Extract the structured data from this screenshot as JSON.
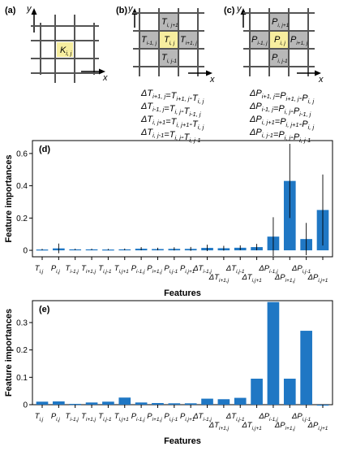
{
  "panels": {
    "a": {
      "label": "(a)",
      "y_axis": "y",
      "x_axis": "x",
      "cell": "K",
      "cell_sub": "i, j"
    },
    "b": {
      "label": "(b)",
      "y_axis": "y",
      "x_axis": "x",
      "cells": {
        "top": {
          "text": "T",
          "sub": "i, j+1"
        },
        "left": {
          "text": "T",
          "sub": "i-1, j"
        },
        "center": {
          "text": "T",
          "sub": "i, j"
        },
        "right": {
          "text": "T",
          "sub": "i+1, j"
        },
        "bottom": {
          "text": "T",
          "sub": "i, j-1"
        }
      },
      "equations": [
        "ΔT_{i+1, j}=T_{i+1, j}-T_{i, j}",
        "ΔT_{i-1, j}=T_{i, j}-T_{i-1, j}",
        "ΔT_{i, j+1}=T_{i, j+1}-T_{i, j}",
        "ΔT_{i, j-1}=T_{i, j}-T_{i, j-1}"
      ]
    },
    "c": {
      "label": "(c)",
      "y_axis": "y",
      "x_axis": "x",
      "cells": {
        "top": {
          "text": "P",
          "sub": "i, j+1"
        },
        "left": {
          "text": "P",
          "sub": "i-1, j"
        },
        "center": {
          "text": "P",
          "sub": "i, j"
        },
        "right": {
          "text": "P",
          "sub": "i+1, j"
        },
        "bottom": {
          "text": "P",
          "sub": "i, j-1"
        }
      },
      "equations": [
        "ΔP_{i+1, j}=P_{i+1, j}-P_{i, j}",
        "ΔP_{i-1, j}=P_{i, j}-P_{i-1, j}",
        "ΔP_{i, j+1}=P_{i, j+1}-P_{i, j}",
        "ΔP_{i, j-1}=P_{i, j}-P_{i, j-1}"
      ]
    }
  },
  "colors": {
    "bar": "#1f77c4",
    "highlight_cell": "#f7ee9f",
    "neighbor_cell": "#b8b8b8",
    "grid": "#555555"
  },
  "chart_data": [
    {
      "panel": "(d)",
      "type": "bar",
      "xlabel": "Features",
      "ylabel": "Feature importances",
      "ylim": [
        -0.04,
        0.68
      ],
      "yticks": [
        "0",
        "0.2",
        "0.4",
        "0.6"
      ],
      "categories": [
        {
          "base": "T",
          "sub": "i,j",
          "delta": false
        },
        {
          "base": "P",
          "sub": "i,j",
          "delta": false
        },
        {
          "base": "T",
          "sub": "i-1,j",
          "delta": false
        },
        {
          "base": "T",
          "sub": "i+1,j",
          "delta": false
        },
        {
          "base": "T",
          "sub": "i,j-1",
          "delta": false
        },
        {
          "base": "T",
          "sub": "i,j+1",
          "delta": false
        },
        {
          "base": "P",
          "sub": "i-1,j",
          "delta": false
        },
        {
          "base": "P",
          "sub": "i+1,j",
          "delta": false
        },
        {
          "base": "P",
          "sub": "i,j-1",
          "delta": false
        },
        {
          "base": "P",
          "sub": "i,j+1",
          "delta": false
        },
        {
          "base": "ΔT",
          "sub": "i-1,j",
          "delta": true
        },
        {
          "base": "ΔT",
          "sub": "i+1,j",
          "delta": true
        },
        {
          "base": "ΔT",
          "sub": "i,j-1",
          "delta": true
        },
        {
          "base": "ΔT",
          "sub": "i,j+1",
          "delta": true
        },
        {
          "base": "ΔP",
          "sub": "i-1,j",
          "delta": true
        },
        {
          "base": "ΔP",
          "sub": "i+1,j",
          "delta": true
        },
        {
          "base": "ΔP",
          "sub": "i,j-1",
          "delta": true
        },
        {
          "base": "ΔP",
          "sub": "i,j+1",
          "delta": true
        }
      ],
      "values": [
        0.005,
        0.012,
        0.006,
        0.006,
        0.005,
        0.006,
        0.01,
        0.008,
        0.009,
        0.009,
        0.015,
        0.013,
        0.016,
        0.02,
        0.085,
        0.43,
        0.07,
        0.25
      ],
      "errors": [
        0.004,
        0.03,
        0.004,
        0.004,
        0.004,
        0.005,
        0.01,
        0.008,
        0.01,
        0.012,
        0.02,
        0.015,
        0.015,
        0.02,
        0.12,
        0.23,
        0.1,
        0.22
      ]
    },
    {
      "panel": "(e)",
      "type": "bar",
      "xlabel": "Features",
      "ylabel": "Feature importances",
      "ylim": [
        0,
        0.38
      ],
      "yticks": [
        "0",
        "0.1",
        "0.2",
        "0.3"
      ],
      "categories": [
        {
          "base": "T",
          "sub": "i,j",
          "delta": false
        },
        {
          "base": "P",
          "sub": "i,j",
          "delta": false
        },
        {
          "base": "T",
          "sub": "i-1,j",
          "delta": false
        },
        {
          "base": "T",
          "sub": "i+1,j",
          "delta": false
        },
        {
          "base": "T",
          "sub": "i,j-1",
          "delta": false
        },
        {
          "base": "T",
          "sub": "i,j+1",
          "delta": false
        },
        {
          "base": "P",
          "sub": "i-1,j",
          "delta": false
        },
        {
          "base": "P",
          "sub": "i+1,j",
          "delta": false
        },
        {
          "base": "P",
          "sub": "i,j-1",
          "delta": false
        },
        {
          "base": "P",
          "sub": "i,j+1",
          "delta": false
        },
        {
          "base": "ΔT",
          "sub": "i-1,j",
          "delta": true
        },
        {
          "base": "ΔT",
          "sub": "i+1,j",
          "delta": true
        },
        {
          "base": "ΔT",
          "sub": "i,j-1",
          "delta": true
        },
        {
          "base": "ΔT",
          "sub": "i,j+1",
          "delta": true
        },
        {
          "base": "ΔP",
          "sub": "i-1,j",
          "delta": true
        },
        {
          "base": "ΔP",
          "sub": "i+1,j",
          "delta": true
        },
        {
          "base": "ΔP",
          "sub": "i,j-1",
          "delta": true
        },
        {
          "base": "ΔP",
          "sub": "i,j+1",
          "delta": true
        }
      ],
      "values": [
        0.011,
        0.012,
        0.003,
        0.008,
        0.011,
        0.026,
        0.008,
        0.006,
        0.005,
        0.005,
        0.022,
        0.02,
        0.025,
        0.095,
        0.375,
        0.095,
        0.27,
        0.0
      ],
      "note_hidden": ""
    }
  ]
}
